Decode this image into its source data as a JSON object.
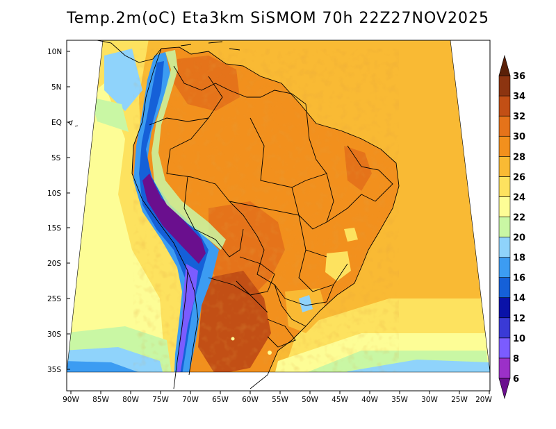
{
  "title": "Temp.2m(oC) Eta3km SiSMOM 70h 22Z27NOV2025",
  "lat_labels": [
    "10N",
    "5N",
    "EQ",
    "5S",
    "10S",
    "15S",
    "20S",
    "25S",
    "30S",
    "35S"
  ],
  "lon_labels": [
    "90W",
    "85W",
    "80W",
    "75W",
    "70W",
    "65W",
    "60W",
    "55W",
    "50W",
    "45W",
    "40W",
    "35W",
    "30W",
    "25W",
    "20W"
  ],
  "colorbar": {
    "labels": [
      "6",
      "8",
      "10",
      "12",
      "14",
      "16",
      "18",
      "20",
      "22",
      "24",
      "26",
      "28",
      "30",
      "32",
      "34",
      "36"
    ],
    "colors": [
      "#6a0f8e",
      "#9b30c8",
      "#7b5cff",
      "#3a3ad6",
      "#0a12a8",
      "#1560d8",
      "#3c9cf2",
      "#8fd3fb",
      "#c9f7a4",
      "#fdfd96",
      "#fde25f",
      "#f9ba34",
      "#f2901d",
      "#e5731a",
      "#c24f15",
      "#8c3410",
      "#5a2008"
    ]
  },
  "palette": {
    "ocean_warm": "#f9ba34",
    "ocean_mild": "#fde25f",
    "ocean_cool": "#fdfd96",
    "land_hot": "#f2901d",
    "land_very_hot": "#e5731a",
    "andes_cold": "#3c9cf2",
    "border": "#000000"
  }
}
